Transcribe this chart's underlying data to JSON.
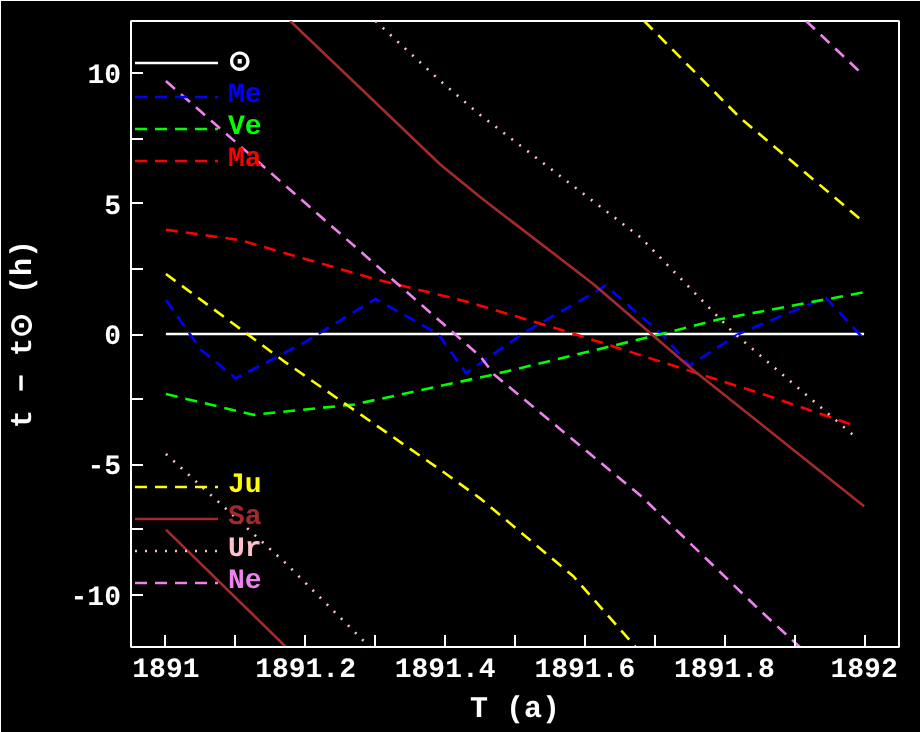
{
  "chart_data": {
    "type": "line",
    "xlabel": "T (a)",
    "ylabel": "t − t⊙ (h)",
    "xlim": [
      1890.95,
      1892.05
    ],
    "ylim": [
      -12,
      12
    ],
    "xticks": [
      1891,
      {
        "value": 1891.1,
        "label": null
      },
      1891.2,
      {
        "value": 1891.3,
        "label": null
      },
      1891.4,
      {
        "value": 1891.5,
        "label": null
      },
      1891.6,
      {
        "value": 1891.7,
        "label": null
      },
      1891.8,
      {
        "value": 1891.9,
        "label": null
      },
      1892
    ],
    "yticks": [
      -10,
      {
        "value": -7.5,
        "label": null
      },
      -5,
      {
        "value": -2.5,
        "label": null
      },
      0,
      {
        "value": 2.5,
        "label": null
      },
      5,
      {
        "value": 7.5,
        "label": null
      },
      10
    ],
    "grid": false,
    "legend": "left",
    "marker": "none",
    "series": [
      {
        "name": "⊙",
        "color": "#ffffff",
        "line_style": "solid",
        "x": [
          1891,
          1892
        ],
        "values": [
          0,
          0
        ]
      },
      {
        "name": "Me",
        "color": "#0000ff",
        "line_style": "dashed",
        "x": [
          1891,
          1891.05,
          1891.1,
          1891.2,
          1891.3,
          1891.39,
          1891.43,
          1891.51,
          1891.63,
          1891.71,
          1891.75,
          1891.82,
          1891.945,
          1892
        ],
        "values": [
          1.3,
          -0.6,
          -1.7,
          -0.3,
          1.35,
          0,
          -1.5,
          0,
          1.85,
          0,
          -1.2,
          0,
          1.4,
          -0.2
        ]
      },
      {
        "name": "Ve",
        "color": "#00ff00",
        "line_style": "dashed",
        "x": [
          1891,
          1891.125,
          1891.27,
          1891.47,
          1891.71,
          1891.79,
          1892
        ],
        "values": [
          -2.3,
          -3.1,
          -2.7,
          -1.55,
          0,
          0.55,
          1.6
        ]
      },
      {
        "name": "Ma",
        "color": "#ff0000",
        "line_style": "dashed",
        "x": [
          1891,
          1891.106,
          1891.3,
          1891.43,
          1891.585,
          1891.69,
          1891.86,
          1891.985
        ],
        "values": [
          4.0,
          3.6,
          2.1,
          1.25,
          0,
          -0.9,
          -2.35,
          -3.5
        ]
      },
      {
        "name": "Ju",
        "color": "#ffff00",
        "line_style": "dashed",
        "x": [
          1891,
          1891.172,
          1891.398,
          1891.45,
          1891.584,
          1891.673,
          1891.679,
          1891.685,
          1891.822,
          1891.997
        ],
        "values": [
          2.3,
          -1.1,
          -5.3,
          -6.3,
          -9.3,
          -12,
          null,
          12,
          8.3,
          4.35
        ]
      },
      {
        "name": "Sa",
        "color": "#a52a2a",
        "line_style": "solid",
        "x": [
          1891,
          1891.172,
          1891.175,
          1891.178,
          1891.393,
          1891.45,
          1891.613,
          1891.756,
          1892
        ],
        "values": [
          -7.5,
          -12,
          null,
          12,
          6.5,
          5.25,
          1.9,
          -1.4,
          -6.6
        ]
      },
      {
        "name": "Ur",
        "color": "#ffc0cb",
        "line_style": "dotted",
        "x": [
          1891,
          1891.172,
          1891.292,
          1891.296,
          1891.3,
          1891.393,
          1891.45,
          1891.68,
          1891.813,
          1891.99
        ],
        "values": [
          -4.6,
          -8.8,
          -12,
          null,
          12,
          9.7,
          8.4,
          3.7,
          0.05,
          -4.0
        ]
      },
      {
        "name": "Ne",
        "color": "#ee82ee",
        "line_style": "dashed",
        "x": [
          1891,
          1891.45,
          1891.47,
          1891.68,
          1891.851,
          1891.908,
          1891.912,
          1891.917,
          1892
        ],
        "values": [
          9.7,
          -0.85,
          -1.55,
          -6.2,
          -10.6,
          -12,
          null,
          12,
          9.9
        ]
      }
    ]
  }
}
